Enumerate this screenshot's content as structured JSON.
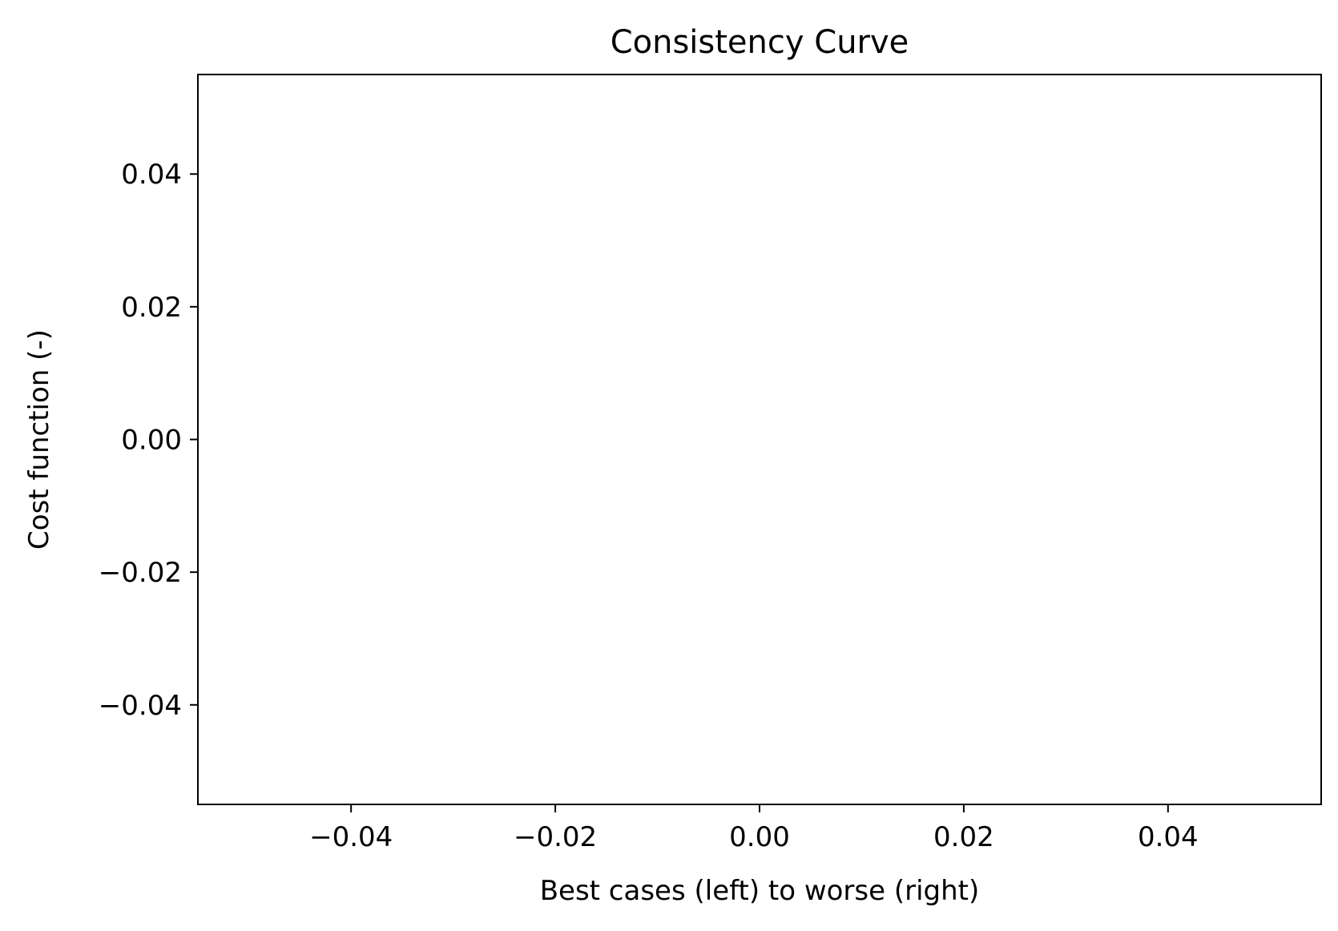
{
  "chart_data": {
    "type": "line",
    "title": "Consistency Curve",
    "xlabel": "Best cases (left) to worse (right)",
    "ylabel": "Cost function (-)",
    "xlim": [
      -0.055,
      0.055
    ],
    "ylim": [
      -0.055,
      0.055
    ],
    "x_ticks": [
      -0.04,
      -0.02,
      0.0,
      0.02,
      0.04
    ],
    "x_tick_labels": [
      "−0.04",
      "−0.02",
      "0.00",
      "0.02",
      "0.04"
    ],
    "y_ticks": [
      -0.04,
      -0.02,
      0.0,
      0.02,
      0.04
    ],
    "y_tick_labels": [
      "−0.04",
      "−0.02",
      "0.00",
      "0.02",
      "0.04"
    ],
    "grid": false,
    "series": [
      {
        "x": [],
        "values": []
      }
    ],
    "colors": {
      "axes": "#000000",
      "background": "#ffffff"
    }
  }
}
